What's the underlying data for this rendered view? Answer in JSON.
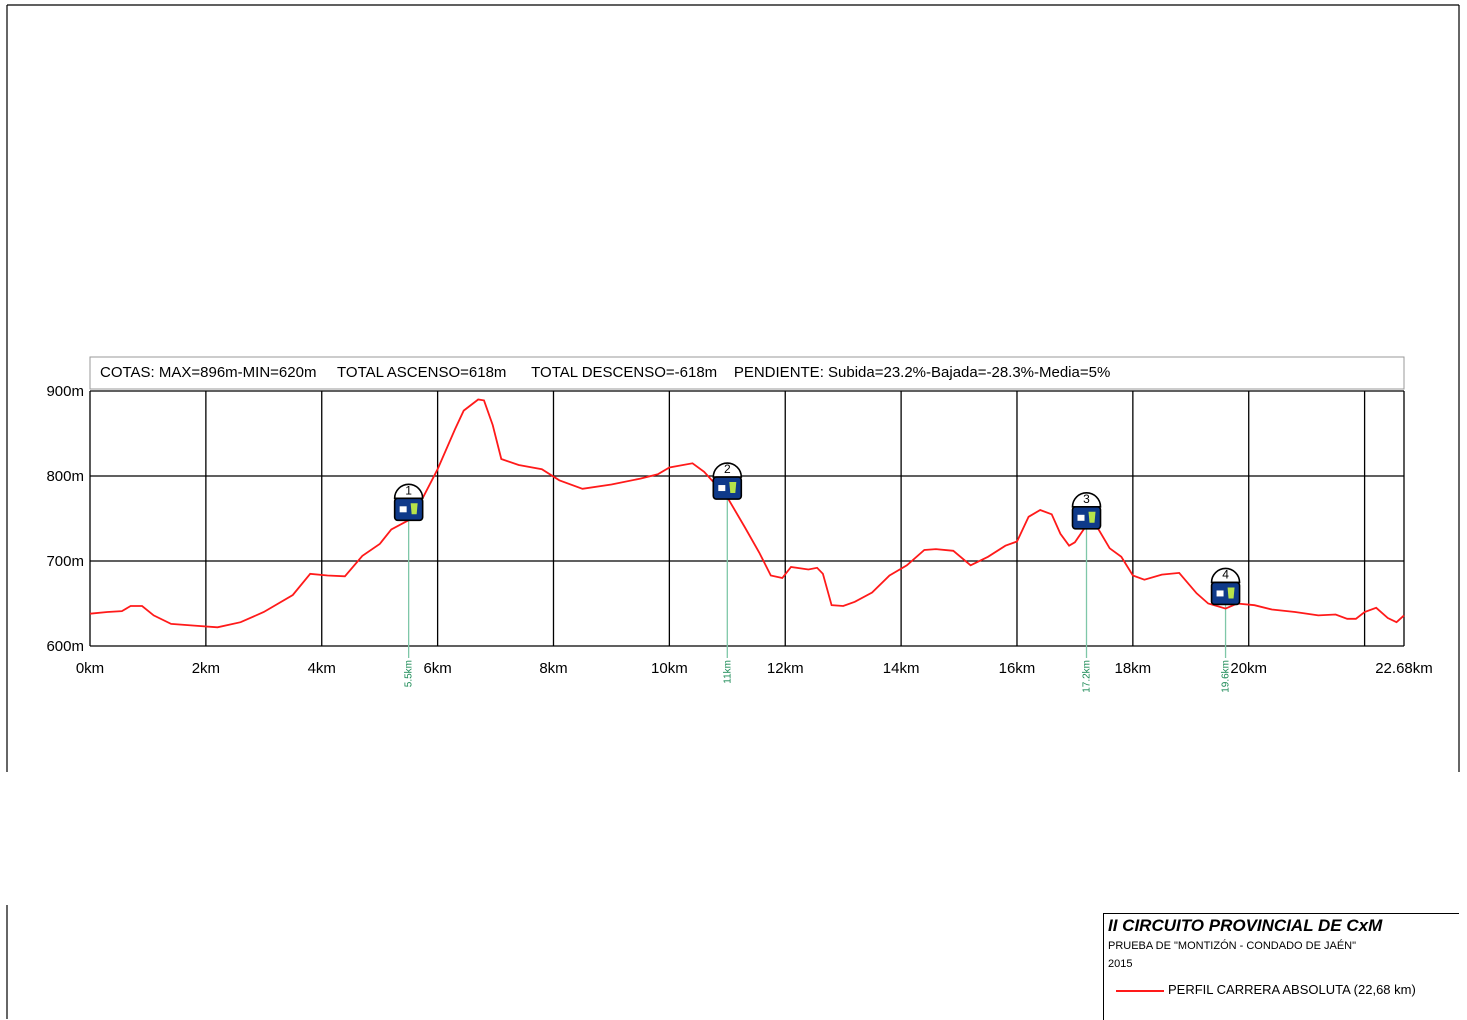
{
  "chart_data": {
    "type": "line",
    "stats": {
      "cotas": "COTAS: MAX=896m-MIN=620m",
      "ascenso": "TOTAL ASCENSO=618m",
      "descenso": "TOTAL DESCENSO=-618m",
      "pendiente": "PENDIENTE: Subida=23.2%-Bajada=-28.3%-Media=5%"
    },
    "xlim": [
      0,
      22.68
    ],
    "ylim": [
      600,
      900
    ],
    "x_ticks": [
      0,
      2,
      4,
      6,
      8,
      10,
      12,
      14,
      16,
      18,
      20,
      22.68
    ],
    "x_tick_labels": [
      "0km",
      "2km",
      "4km",
      "6km",
      "8km",
      "10km",
      "12km",
      "14km",
      "16km",
      "18km",
      "20km",
      "22.68km"
    ],
    "x_grid": [
      0,
      2,
      4,
      6,
      8,
      10,
      12,
      14,
      16,
      18,
      20,
      22,
      22.68
    ],
    "y_ticks": [
      600,
      700,
      800,
      900
    ],
    "y_tick_labels": [
      "600m",
      "700m",
      "800m",
      "900m"
    ],
    "grid": true,
    "line_color": "#ff1a1a",
    "series": [
      {
        "name": "PERFIL CARRERA ABSOLUTA (22,68 km)",
        "x": [
          0,
          0.3,
          0.55,
          0.7,
          0.9,
          1.1,
          1.4,
          1.8,
          2.2,
          2.6,
          3.0,
          3.5,
          3.8,
          4.1,
          4.4,
          4.7,
          5.0,
          5.2,
          5.5,
          5.75,
          6.0,
          6.3,
          6.45,
          6.7,
          6.8,
          6.95,
          7.1,
          7.4,
          7.8,
          8.1,
          8.5,
          9.0,
          9.5,
          9.8,
          10.0,
          10.4,
          10.6,
          10.8,
          11.0,
          11.3,
          11.55,
          11.75,
          11.95,
          12.1,
          12.4,
          12.55,
          12.65,
          12.8,
          13.0,
          13.2,
          13.5,
          13.8,
          14.1,
          14.4,
          14.6,
          14.9,
          15.2,
          15.5,
          15.8,
          16.0,
          16.2,
          16.4,
          16.6,
          16.75,
          16.9,
          17.0,
          17.2,
          17.4,
          17.6,
          17.8,
          18.0,
          18.2,
          18.5,
          18.8,
          19.1,
          19.3,
          19.6,
          19.8,
          20.1,
          20.4,
          20.8,
          21.2,
          21.5,
          21.7,
          21.85,
          22.0,
          22.2,
          22.4,
          22.55,
          22.68
        ],
        "y": [
          638,
          640,
          641,
          647,
          647,
          636,
          626,
          624,
          622,
          628,
          640,
          660,
          685,
          683,
          682,
          706,
          720,
          737,
          748,
          775,
          808,
          855,
          877,
          890,
          889,
          860,
          820,
          813,
          808,
          795,
          785,
          790,
          797,
          802,
          810,
          815,
          805,
          790,
          775,
          740,
          710,
          683,
          680,
          693,
          690,
          692,
          685,
          648,
          647,
          652,
          663,
          683,
          695,
          713,
          714,
          712,
          695,
          705,
          718,
          723,
          752,
          760,
          755,
          732,
          718,
          722,
          742,
          738,
          715,
          705,
          683,
          678,
          684,
          686,
          662,
          650,
          644,
          650,
          648,
          643,
          640,
          636,
          637,
          632,
          632,
          640,
          645,
          633,
          628,
          636
        ]
      }
    ],
    "waypoints": [
      {
        "number": "1",
        "km": 5.5,
        "elevation": 762,
        "label": "5.5km"
      },
      {
        "number": "2",
        "km": 11,
        "elevation": 787,
        "label": "11km"
      },
      {
        "number": "3",
        "km": 17.2,
        "elevation": 752,
        "label": "17.2km"
      },
      {
        "number": "4",
        "km": 19.6,
        "elevation": 663,
        "label": "19.6km"
      }
    ],
    "waypoint_color": "#0f3a8a",
    "waypoint_line_color": "#7fc7a8",
    "legend": {
      "title": "II CIRCUITO PROVINCIAL DE CxM",
      "subtitle": "PRUEBA DE \"MONTIZÓN - CONDADO DE JAÉN\"",
      "year": "2015",
      "entry": "PERFIL CARRERA ABSOLUTA (22,68 km)",
      "placement": "bottom-right"
    }
  }
}
